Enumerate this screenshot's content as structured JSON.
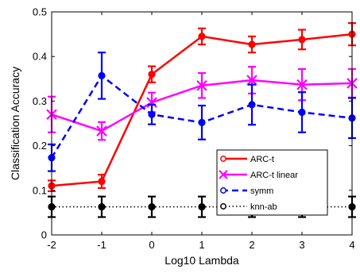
{
  "chart_data": {
    "type": "line",
    "xlabel": "Log10 Lambda",
    "ylabel": "Classification Accuracy",
    "x": [
      -2,
      -1,
      0,
      1,
      2,
      3,
      4
    ],
    "xticks": [
      "-2",
      "-1",
      "0",
      "1",
      "2",
      "3",
      "4"
    ],
    "yticks": [
      "0",
      "0.1",
      "0.2",
      "0.3",
      "0.4",
      "0.5"
    ],
    "xlim": [
      -2,
      4
    ],
    "ylim": [
      0,
      0.5
    ],
    "grid": false,
    "legend_position": "lower-right",
    "series": [
      {
        "name": "ARC-t",
        "color": "#ff0000",
        "linestyle": "solid",
        "marker": "circle",
        "values": [
          0.11,
          0.12,
          0.36,
          0.445,
          0.427,
          0.438,
          0.45
        ],
        "errors": [
          0.012,
          0.015,
          0.018,
          0.018,
          0.018,
          0.022,
          0.025
        ]
      },
      {
        "name": "ARC-t linear",
        "color": "#ff00ff",
        "linestyle": "solid",
        "marker": "x",
        "values": [
          0.27,
          0.233,
          0.297,
          0.335,
          0.347,
          0.337,
          0.34
        ],
        "errors": [
          0.04,
          0.02,
          0.022,
          0.028,
          0.03,
          0.035,
          0.032
        ]
      },
      {
        "name": "symm",
        "color": "#0000ff",
        "linestyle": "dashed",
        "marker": "circle",
        "values": [
          0.173,
          0.357,
          0.27,
          0.252,
          0.292,
          0.275,
          0.262
        ],
        "errors": [
          0.03,
          0.052,
          0.022,
          0.038,
          0.045,
          0.045,
          0.045
        ]
      },
      {
        "name": "knn-ab",
        "color": "#000000",
        "linestyle": "dotted",
        "marker": "circle",
        "values": [
          0.063,
          0.063,
          0.063,
          0.063,
          0.063,
          0.063,
          0.063
        ],
        "errors": [
          0.023,
          0.023,
          0.023,
          0.023,
          0.023,
          0.023,
          0.023
        ]
      }
    ]
  }
}
